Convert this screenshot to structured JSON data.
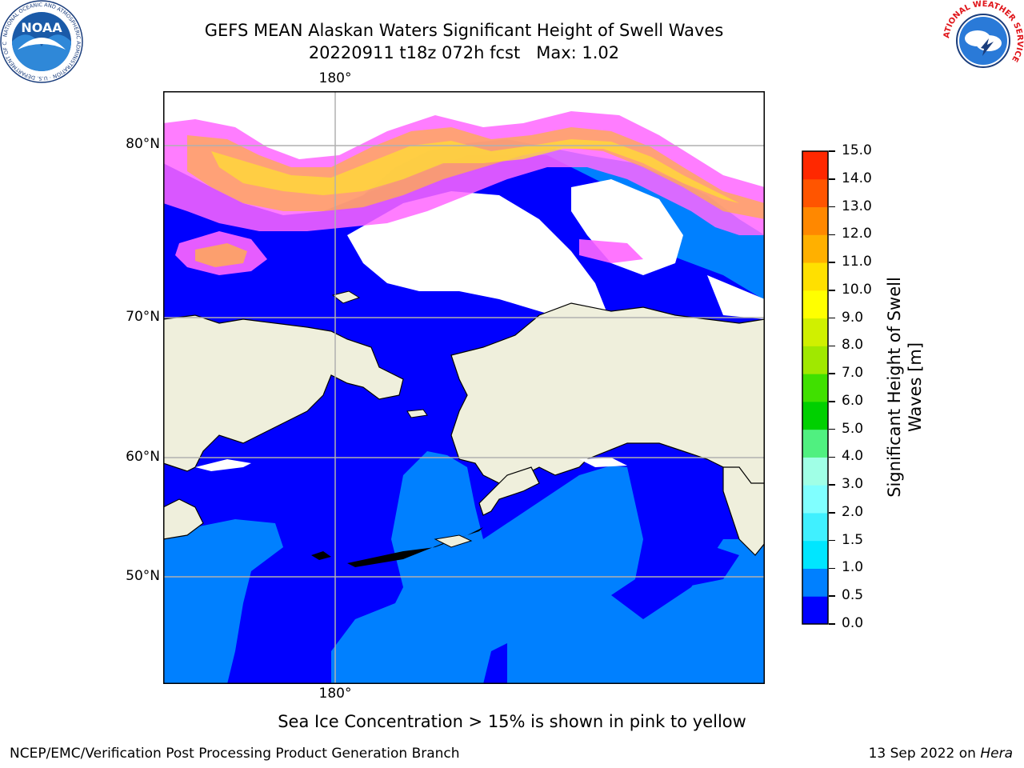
{
  "title": {
    "line1": "GEFS MEAN Alaskan Waters Significant Height of Swell Waves",
    "line2": "20220911 t18z 072h fcst   Max: 1.02"
  },
  "map": {
    "lon_labels": {
      "top": "180°",
      "bottom": "180°"
    },
    "lat_labels": [
      "80°N",
      "70°N",
      "60°N",
      "50°N"
    ],
    "colors": {
      "ocean_low": "#0000ff",
      "ocean_mid": "#0080ff",
      "land": "#efefdc",
      "ice_pink": "#ff66ff",
      "ice_orange": "#ffaa55",
      "ice_yellow": "#ffdd33",
      "unassigned": "#ffffff"
    }
  },
  "colorbar": {
    "label_line1": "Significant Height of Swell",
    "label_line2": "Waves [m]",
    "ticks": [
      "0.0",
      "0.5",
      "1.0",
      "1.5",
      "2.0",
      "3.0",
      "4.0",
      "5.0",
      "6.0",
      "7.0",
      "8.0",
      "9.0",
      "10.0",
      "11.0",
      "12.0",
      "13.0",
      "14.0",
      "15.0"
    ],
    "colors": [
      "#0000ff",
      "#0080ff",
      "#00e6ff",
      "#40f0ff",
      "#80ffff",
      "#a0ffe6",
      "#50f080",
      "#00d000",
      "#40e000",
      "#a0e800",
      "#d0f000",
      "#ffff00",
      "#ffe000",
      "#ffb000",
      "#ff8800",
      "#ff5500",
      "#ff2800",
      "#ff0000"
    ]
  },
  "note": "Sea Ice Concentration > 15% is shown in pink to yellow",
  "footer": {
    "left": "NCEP/EMC/Verification Post Processing Product Generation Branch",
    "right_date": "13 Sep 2022 on",
    "right_host": "Hera"
  },
  "logos": {
    "noaa_text": "NOAA",
    "noaa_ring": "NATIONAL OCEANIC AND ATMOSPHERIC ADMINISTRATION · U.S. DEPARTMENT OF COMMERCE",
    "nws_ring": "NATIONAL WEATHER SERVICE"
  }
}
